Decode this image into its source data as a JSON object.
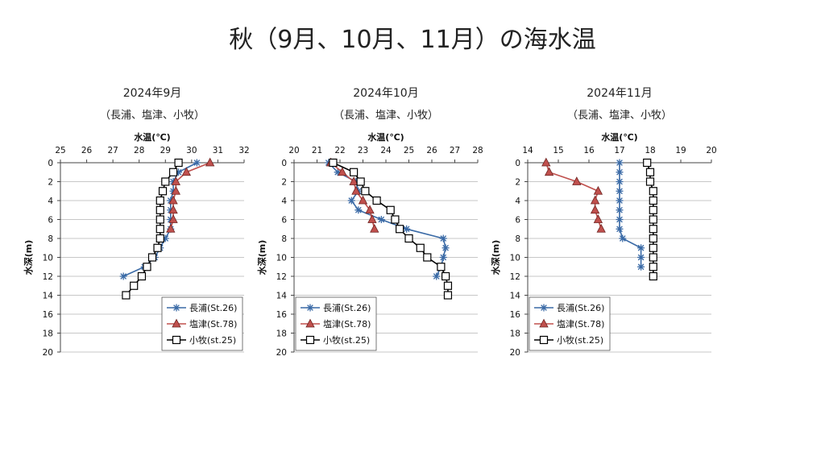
{
  "page_title": "秋（9月、10月、11月）の海水温",
  "series_styles": [
    {
      "name": "長浦(St.26)",
      "color": "#3a6aa6",
      "marker": "asterisk"
    },
    {
      "name": "塩津(St.78)",
      "color": "#c0504d",
      "marker": "triangle"
    },
    {
      "name": "小牧(st.25)",
      "color": "#000000",
      "marker": "square"
    }
  ],
  "chart_data": [
    {
      "type": "line",
      "title": "2024年9月",
      "subtitle": "（長浦、塩津、小牧）",
      "xlabel": "水温(℃)",
      "ylabel": "水深(m)",
      "xlim": [
        25,
        32
      ],
      "xticks": [
        25,
        26,
        27,
        28,
        29,
        30,
        31,
        32
      ],
      "ylim": [
        0,
        20
      ],
      "yticks": [
        0,
        2,
        4,
        6,
        8,
        10,
        12,
        14,
        16,
        18,
        20
      ],
      "y_inverted": true,
      "grid": "horizontal",
      "legend_position": "bottom-right",
      "series": [
        {
          "name": "長浦(St.26)",
          "depth": [
            0,
            1,
            2,
            3,
            4,
            5,
            6,
            7,
            8,
            9,
            10,
            11,
            12
          ],
          "temp": [
            30.2,
            29.5,
            29.3,
            29.3,
            29.2,
            29.2,
            29.2,
            29.2,
            29.0,
            28.8,
            28.6,
            28.2,
            27.4
          ]
        },
        {
          "name": "塩津(St.78)",
          "depth": [
            0,
            1,
            2,
            3,
            4,
            5,
            6,
            7
          ],
          "temp": [
            30.7,
            29.8,
            29.4,
            29.4,
            29.3,
            29.3,
            29.3,
            29.2
          ]
        },
        {
          "name": "小牧(st.25)",
          "depth": [
            0,
            1,
            2,
            3,
            4,
            5,
            6,
            7,
            8,
            9,
            10,
            11,
            12,
            13,
            14
          ],
          "temp": [
            29.5,
            29.3,
            29.0,
            28.9,
            28.8,
            28.8,
            28.8,
            28.8,
            28.8,
            28.7,
            28.5,
            28.3,
            28.1,
            27.8,
            27.5
          ]
        }
      ]
    },
    {
      "type": "line",
      "title": "2024年10月",
      "subtitle": "（長浦、塩津、小牧）",
      "xlabel": "水温(℃)",
      "ylabel": "水深(m)",
      "xlim": [
        20,
        28
      ],
      "xticks": [
        20,
        21,
        22,
        23,
        24,
        25,
        26,
        27,
        28
      ],
      "ylim": [
        0,
        20
      ],
      "yticks": [
        0,
        2,
        4,
        6,
        8,
        10,
        12,
        14,
        16,
        18,
        20
      ],
      "y_inverted": true,
      "grid": "horizontal",
      "legend_position": "bottom-left",
      "series": [
        {
          "name": "長浦(St.26)",
          "depth": [
            0,
            1,
            2,
            3,
            4,
            5,
            6,
            7,
            8,
            9,
            10,
            11,
            12
          ],
          "temp": [
            21.5,
            21.9,
            22.7,
            22.8,
            22.5,
            22.8,
            23.8,
            24.9,
            26.5,
            26.6,
            26.5,
            26.4,
            26.2
          ]
        },
        {
          "name": "塩津(St.78)",
          "depth": [
            0,
            1,
            2,
            3,
            4,
            5,
            6,
            7
          ],
          "temp": [
            21.6,
            22.1,
            22.6,
            22.7,
            23.0,
            23.3,
            23.4,
            23.5
          ]
        },
        {
          "name": "小牧(st.25)",
          "depth": [
            0,
            1,
            2,
            3,
            4,
            5,
            6,
            7,
            8,
            9,
            10,
            11,
            12,
            13,
            14
          ],
          "temp": [
            21.7,
            22.6,
            22.9,
            23.1,
            23.6,
            24.2,
            24.4,
            24.6,
            25.0,
            25.5,
            25.8,
            26.4,
            26.6,
            26.7,
            26.7
          ]
        }
      ]
    },
    {
      "type": "line",
      "title": "2024年11月",
      "subtitle": "（長浦、塩津、小牧）",
      "xlabel": "水温(℃)",
      "ylabel": "水深(m)",
      "xlim": [
        14,
        20
      ],
      "xticks": [
        14,
        15,
        16,
        17,
        18,
        19,
        20
      ],
      "ylim": [
        0,
        20
      ],
      "yticks": [
        0,
        2,
        4,
        6,
        8,
        10,
        12,
        14,
        16,
        18,
        20
      ],
      "y_inverted": true,
      "grid": "horizontal",
      "legend_position": "bottom-left",
      "series": [
        {
          "name": "長浦(St.26)",
          "depth": [
            0,
            1,
            2,
            3,
            4,
            5,
            6,
            7,
            8,
            9,
            10,
            11
          ],
          "temp": [
            17.0,
            17.0,
            17.0,
            17.0,
            17.0,
            17.0,
            17.0,
            17.0,
            17.1,
            17.7,
            17.7,
            17.7
          ]
        },
        {
          "name": "塩津(St.78)",
          "depth": [
            0,
            1,
            2,
            3,
            4,
            5,
            6,
            7
          ],
          "temp": [
            14.6,
            14.7,
            15.6,
            16.3,
            16.2,
            16.2,
            16.3,
            16.4
          ]
        },
        {
          "name": "小牧(st.25)",
          "depth": [
            0,
            1,
            2,
            3,
            4,
            5,
            6,
            7,
            8,
            9,
            10,
            11,
            12
          ],
          "temp": [
            17.9,
            18.0,
            18.0,
            18.1,
            18.1,
            18.1,
            18.1,
            18.1,
            18.1,
            18.1,
            18.1,
            18.1,
            18.1
          ]
        }
      ]
    }
  ]
}
